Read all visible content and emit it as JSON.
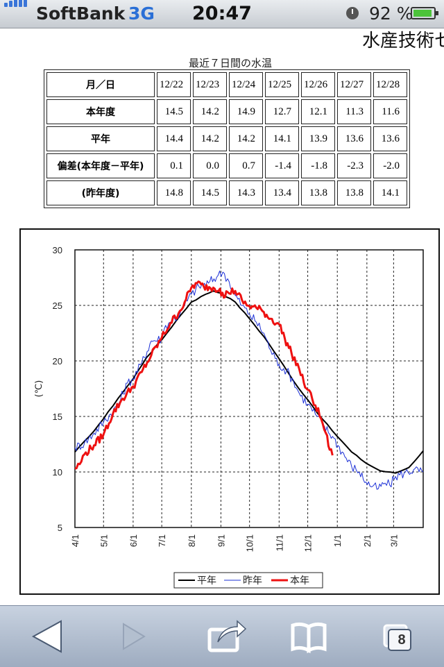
{
  "status_bar": {
    "carrier": "SoftBank",
    "network": "3G",
    "time": "20:47",
    "battery_percent": "92 %",
    "battery_level": 0.92
  },
  "page": {
    "site_title": "水産技術セ",
    "table_caption": "最近７日間の水温"
  },
  "table": {
    "header_label": "月／日",
    "dates": [
      "12/22",
      "12/23",
      "12/24",
      "12/25",
      "12/26",
      "12/27",
      "12/28"
    ],
    "rows": [
      {
        "label": "本年度",
        "values": [
          "14.5",
          "14.2",
          "14.9",
          "12.7",
          "12.1",
          "11.3",
          "11.6"
        ]
      },
      {
        "label": "平年",
        "values": [
          "14.4",
          "14.2",
          "14.2",
          "14.1",
          "13.9",
          "13.6",
          "13.6"
        ]
      },
      {
        "label": "偏差(本年度－平年)",
        "values": [
          "0.1",
          "0.0",
          "0.7",
          "-1.4",
          "-1.8",
          "-2.3",
          "-2.0"
        ]
      },
      {
        "label": "(昨年度)",
        "values": [
          "14.8",
          "14.5",
          "14.3",
          "13.4",
          "13.8",
          "13.8",
          "14.1"
        ]
      }
    ]
  },
  "chart_data": {
    "type": "line",
    "ylabel": "(℃)",
    "ylim": [
      5,
      30
    ],
    "yticks": [
      "5",
      "10",
      "15",
      "20",
      "25",
      "30"
    ],
    "x_tick_labels": [
      "4/1",
      "5/1",
      "6/1",
      "7/1",
      "8/1",
      "9/1",
      "10/1",
      "11/1",
      "12/1",
      "1/1",
      "2/1",
      "3/1"
    ],
    "xlim_days": [
      0,
      365
    ],
    "grid": true,
    "legend_position": "bottom",
    "series": [
      {
        "name": "平年",
        "color": "#000000",
        "points": [
          [
            0,
            11.8
          ],
          [
            15,
            13.2
          ],
          [
            30,
            14.8
          ],
          [
            45,
            16.6
          ],
          [
            61,
            18.4
          ],
          [
            75,
            20.3
          ],
          [
            91,
            21.9
          ],
          [
            106,
            23.6
          ],
          [
            122,
            25.3
          ],
          [
            137,
            26.0
          ],
          [
            145,
            26.3
          ],
          [
            153,
            26.1
          ],
          [
            168,
            25.3
          ],
          [
            183,
            23.8
          ],
          [
            198,
            22.2
          ],
          [
            214,
            20.2
          ],
          [
            229,
            18.2
          ],
          [
            244,
            16.5
          ],
          [
            259,
            14.8
          ],
          [
            275,
            13.2
          ],
          [
            290,
            11.8
          ],
          [
            305,
            10.8
          ],
          [
            320,
            10.1
          ],
          [
            336,
            9.9
          ],
          [
            350,
            10.4
          ],
          [
            365,
            11.9
          ]
        ]
      },
      {
        "name": "昨年",
        "color": "#1b2fd6",
        "points": [
          [
            0,
            12.2
          ],
          [
            10,
            12.6
          ],
          [
            20,
            13.5
          ],
          [
            30,
            14.5
          ],
          [
            45,
            16.0
          ],
          [
            55,
            18.0
          ],
          [
            61,
            18.4
          ],
          [
            70,
            19.8
          ],
          [
            80,
            21.8
          ],
          [
            91,
            22.0
          ],
          [
            95,
            23.2
          ],
          [
            100,
            23.5
          ],
          [
            110,
            24.2
          ],
          [
            115,
            25.0
          ],
          [
            122,
            26.0
          ],
          [
            130,
            26.7
          ],
          [
            140,
            27.0
          ],
          [
            150,
            27.7
          ],
          [
            155,
            28.0
          ],
          [
            160,
            27.4
          ],
          [
            168,
            25.9
          ],
          [
            175,
            25.0
          ],
          [
            183,
            24.2
          ],
          [
            190,
            23.5
          ],
          [
            198,
            22.5
          ],
          [
            205,
            21.0
          ],
          [
            210,
            20.2
          ],
          [
            214,
            19.7
          ],
          [
            222,
            19.1
          ],
          [
            229,
            18.2
          ],
          [
            235,
            17.1
          ],
          [
            244,
            16.1
          ],
          [
            252,
            15.2
          ],
          [
            260,
            14.2
          ],
          [
            270,
            13.2
          ],
          [
            280,
            11.8
          ],
          [
            290,
            10.5
          ],
          [
            298,
            10.0
          ],
          [
            305,
            9.1
          ],
          [
            312,
            8.7
          ],
          [
            318,
            8.5
          ],
          [
            325,
            9.0
          ],
          [
            330,
            8.8
          ],
          [
            336,
            9.6
          ],
          [
            345,
            9.9
          ],
          [
            355,
            10.2
          ],
          [
            365,
            10.0
          ]
        ]
      },
      {
        "name": "本年",
        "color": "#ee1111",
        "points": [
          [
            0,
            10.3
          ],
          [
            5,
            10.7
          ],
          [
            10,
            11.6
          ],
          [
            20,
            12.4
          ],
          [
            30,
            13.4
          ],
          [
            40,
            15.3
          ],
          [
            50,
            16.6
          ],
          [
            61,
            17.7
          ],
          [
            70,
            19.0
          ],
          [
            80,
            20.5
          ],
          [
            91,
            22.1
          ],
          [
            100,
            23.4
          ],
          [
            110,
            24.5
          ],
          [
            115,
            25.3
          ],
          [
            122,
            26.6
          ],
          [
            128,
            27.0
          ],
          [
            135,
            26.7
          ],
          [
            145,
            26.6
          ],
          [
            152,
            26.5
          ],
          [
            156,
            25.7
          ],
          [
            160,
            26.2
          ],
          [
            168,
            26.3
          ],
          [
            175,
            25.5
          ],
          [
            180,
            25.0
          ],
          [
            190,
            24.8
          ],
          [
            198,
            24.4
          ],
          [
            205,
            23.8
          ],
          [
            214,
            23.3
          ],
          [
            220,
            22.0
          ],
          [
            227,
            20.7
          ],
          [
            235,
            19.3
          ],
          [
            240,
            18.0
          ],
          [
            244,
            17.4
          ],
          [
            252,
            16.0
          ],
          [
            258,
            14.8
          ],
          [
            263,
            13.5
          ],
          [
            267,
            12.0
          ],
          [
            270,
            11.5
          ]
        ]
      }
    ]
  },
  "toolbar": {
    "tabs_count": "8",
    "buttons": [
      "back",
      "forward",
      "share",
      "bookmarks",
      "tabs"
    ]
  }
}
